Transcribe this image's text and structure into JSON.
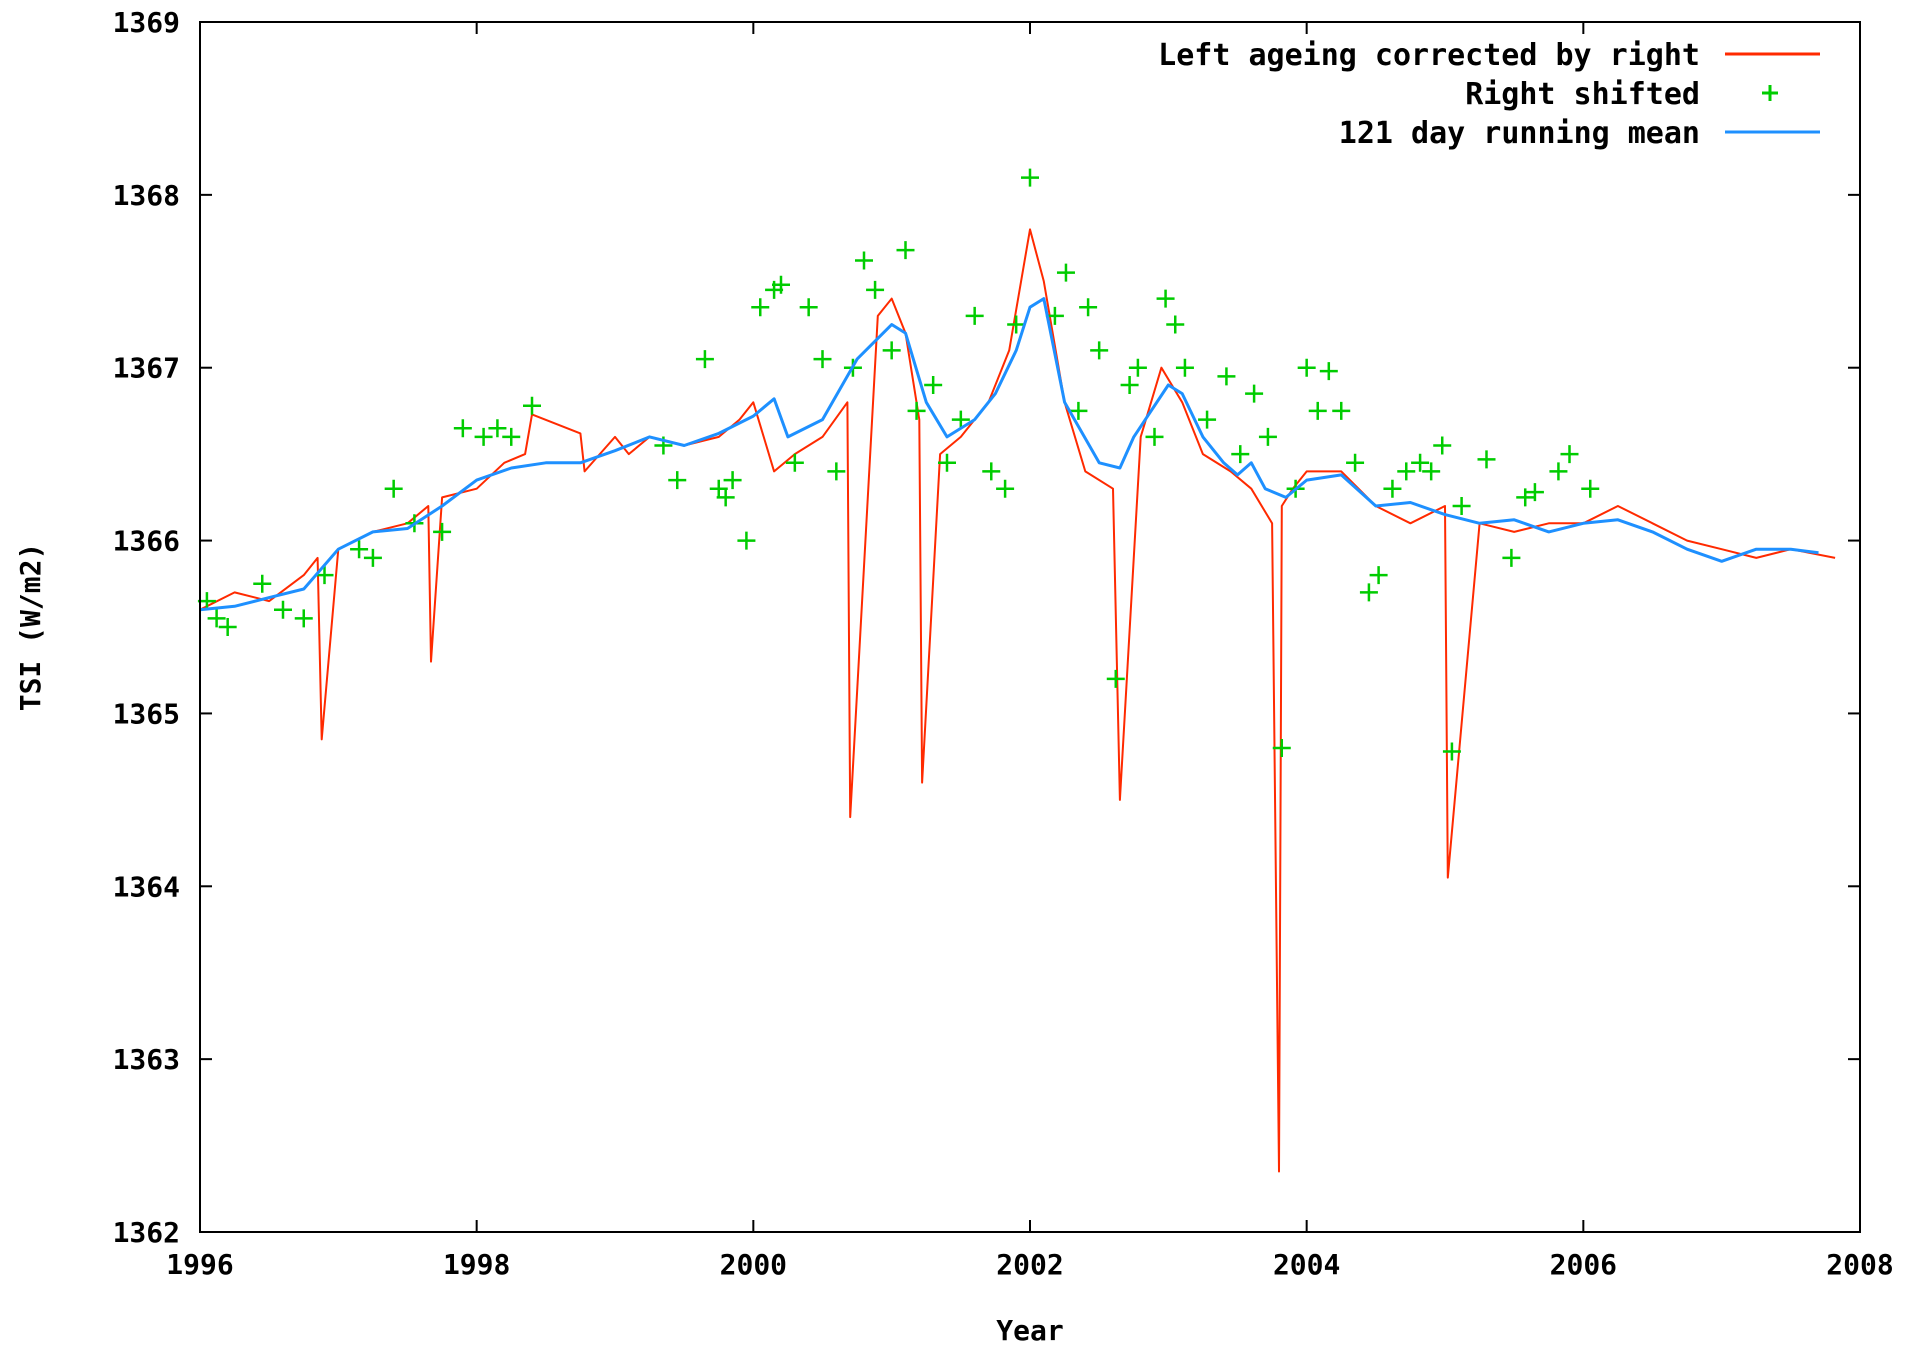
{
  "chart_data": {
    "type": "line",
    "title": "",
    "xlabel": "Year",
    "ylabel": "TSI (W/m2)",
    "xlim": [
      1996,
      2008
    ],
    "ylim": [
      1362,
      1369
    ],
    "x_ticks": [
      1996,
      1998,
      2000,
      2002,
      2004,
      2006,
      2008
    ],
    "y_ticks": [
      1362,
      1363,
      1364,
      1365,
      1366,
      1367,
      1368,
      1369
    ],
    "x_tick_labels": [
      "1996",
      "1998",
      "2000",
      "2002",
      "2004",
      "2006",
      "2008"
    ],
    "y_tick_labels": [
      "1362",
      "1363",
      "1364",
      "1365",
      "1366",
      "1367",
      "1368",
      "1369"
    ],
    "grid": false,
    "legend_position": "top-right",
    "series": [
      {
        "name": "Left ageing corrected by right",
        "style": "line",
        "color": "#ff2a00",
        "x": [
          1996.0,
          1996.25,
          1996.5,
          1996.75,
          1996.85,
          1996.88,
          1997.0,
          1997.25,
          1997.5,
          1997.65,
          1997.67,
          1997.75,
          1998.0,
          1998.2,
          1998.35,
          1998.4,
          1998.75,
          1998.78,
          1999.0,
          1999.1,
          1999.25,
          1999.5,
          1999.75,
          1999.9,
          2000.0,
          2000.15,
          2000.3,
          2000.5,
          2000.68,
          2000.7,
          2000.9,
          2001.0,
          2001.1,
          2001.2,
          2001.22,
          2001.35,
          2001.5,
          2001.7,
          2001.85,
          2002.0,
          2002.1,
          2002.25,
          2002.4,
          2002.6,
          2002.65,
          2002.8,
          2002.95,
          2003.1,
          2003.25,
          2003.45,
          2003.6,
          2003.75,
          2003.8,
          2003.82,
          2003.9,
          2004.0,
          2004.25,
          2004.5,
          2004.75,
          2005.0,
          2005.02,
          2005.25,
          2005.5,
          2005.75,
          2006.0,
          2006.25,
          2006.5,
          2006.75,
          2007.0,
          2007.25,
          2007.5,
          2007.82
        ],
        "values": [
          1365.6,
          1365.7,
          1365.65,
          1365.8,
          1365.9,
          1364.85,
          1365.95,
          1366.05,
          1366.1,
          1366.2,
          1365.3,
          1366.25,
          1366.3,
          1366.45,
          1366.5,
          1366.73,
          1366.62,
          1366.4,
          1366.6,
          1366.5,
          1366.6,
          1366.55,
          1366.6,
          1366.7,
          1366.8,
          1366.4,
          1366.5,
          1366.6,
          1366.8,
          1364.4,
          1367.3,
          1367.4,
          1367.2,
          1366.7,
          1364.6,
          1366.5,
          1366.6,
          1366.8,
          1367.1,
          1367.8,
          1367.5,
          1366.8,
          1366.4,
          1366.3,
          1364.5,
          1366.6,
          1367.0,
          1366.8,
          1366.5,
          1366.4,
          1366.3,
          1366.1,
          1362.35,
          1366.2,
          1366.3,
          1366.4,
          1366.4,
          1366.2,
          1366.1,
          1366.2,
          1364.05,
          1366.1,
          1366.05,
          1366.1,
          1366.1,
          1366.2,
          1366.1,
          1366.0,
          1365.95,
          1365.9,
          1365.95,
          1365.9
        ]
      },
      {
        "name": "Right shifted",
        "style": "markers",
        "marker": "+",
        "color": "#00cc00",
        "x": [
          1996.05,
          1996.12,
          1996.2,
          1996.45,
          1996.6,
          1996.75,
          1996.9,
          1997.15,
          1997.25,
          1997.4,
          1997.55,
          1997.75,
          1997.9,
          1998.05,
          1998.15,
          1998.25,
          1998.4,
          1999.35,
          1999.45,
          1999.65,
          1999.75,
          1999.8,
          1999.85,
          1999.95,
          2000.05,
          2000.15,
          2000.2,
          2000.3,
          2000.4,
          2000.5,
          2000.6,
          2000.72,
          2000.8,
          2000.88,
          2001.0,
          2001.1,
          2001.18,
          2001.3,
          2001.4,
          2001.5,
          2001.6,
          2001.72,
          2001.82,
          2001.9,
          2002.0,
          2002.18,
          2002.26,
          2002.35,
          2002.42,
          2002.5,
          2002.62,
          2002.72,
          2002.78,
          2002.9,
          2002.98,
          2003.05,
          2003.12,
          2003.28,
          2003.42,
          2003.52,
          2003.62,
          2003.72,
          2003.82,
          2003.92,
          2004.0,
          2004.08,
          2004.16,
          2004.25,
          2004.35,
          2004.45,
          2004.52,
          2004.62,
          2004.72,
          2004.82,
          2004.9,
          2004.98,
          2005.05,
          2005.12,
          2005.3,
          2005.48,
          2005.58,
          2005.65,
          2005.82,
          2005.9,
          2006.05
        ],
        "values": [
          1365.65,
          1365.55,
          1365.5,
          1365.75,
          1365.6,
          1365.55,
          1365.8,
          1365.95,
          1365.9,
          1366.3,
          1366.1,
          1366.05,
          1366.65,
          1366.6,
          1366.65,
          1366.6,
          1366.78,
          1366.55,
          1366.35,
          1367.05,
          1366.3,
          1366.25,
          1366.35,
          1366.0,
          1367.35,
          1367.45,
          1367.48,
          1366.45,
          1367.35,
          1367.05,
          1366.4,
          1367.0,
          1367.62,
          1367.45,
          1367.1,
          1367.68,
          1366.75,
          1366.9,
          1366.45,
          1366.7,
          1367.3,
          1366.4,
          1366.3,
          1367.25,
          1368.1,
          1367.3,
          1367.55,
          1366.75,
          1367.35,
          1367.1,
          1365.2,
          1366.9,
          1367.0,
          1366.6,
          1367.4,
          1367.25,
          1367.0,
          1366.7,
          1366.95,
          1366.5,
          1366.85,
          1366.6,
          1364.8,
          1366.3,
          1367.0,
          1366.75,
          1366.98,
          1366.75,
          1366.45,
          1365.7,
          1365.8,
          1366.3,
          1366.4,
          1366.45,
          1366.4,
          1366.55,
          1364.78,
          1366.2,
          1366.47,
          1365.9,
          1366.25,
          1366.28,
          1366.4,
          1366.5,
          1366.3
        ]
      },
      {
        "name": "121 day running mean",
        "style": "line",
        "color": "#1e90ff",
        "x": [
          1996.0,
          1996.25,
          1996.5,
          1996.75,
          1997.0,
          1997.25,
          1997.5,
          1997.75,
          1998.0,
          1998.25,
          1998.5,
          1998.75,
          1999.0,
          1999.25,
          1999.5,
          1999.75,
          2000.0,
          2000.15,
          2000.25,
          2000.5,
          2000.75,
          2001.0,
          2001.1,
          2001.25,
          2001.4,
          2001.6,
          2001.75,
          2001.9,
          2002.0,
          2002.1,
          2002.25,
          2002.5,
          2002.65,
          2002.75,
          2003.0,
          2003.1,
          2003.25,
          2003.4,
          2003.5,
          2003.6,
          2003.7,
          2003.85,
          2004.0,
          2004.25,
          2004.5,
          2004.75,
          2005.0,
          2005.25,
          2005.5,
          2005.75,
          2006.0,
          2006.25,
          2006.5,
          2006.75,
          2007.0,
          2007.25,
          2007.5,
          2007.7
        ],
        "values": [
          1365.6,
          1365.62,
          1365.67,
          1365.72,
          1365.95,
          1366.05,
          1366.07,
          1366.2,
          1366.35,
          1366.42,
          1366.45,
          1366.45,
          1366.52,
          1366.6,
          1366.55,
          1366.62,
          1366.72,
          1366.82,
          1366.6,
          1366.7,
          1367.05,
          1367.25,
          1367.2,
          1366.8,
          1366.6,
          1366.7,
          1366.85,
          1367.1,
          1367.35,
          1367.4,
          1366.8,
          1366.45,
          1366.42,
          1366.6,
          1366.9,
          1366.85,
          1366.6,
          1366.45,
          1366.38,
          1366.45,
          1366.3,
          1366.25,
          1366.35,
          1366.38,
          1366.2,
          1366.22,
          1366.15,
          1366.1,
          1366.12,
          1366.05,
          1366.1,
          1366.12,
          1366.05,
          1365.95,
          1365.88,
          1365.95,
          1365.95,
          1365.93
        ]
      }
    ]
  }
}
